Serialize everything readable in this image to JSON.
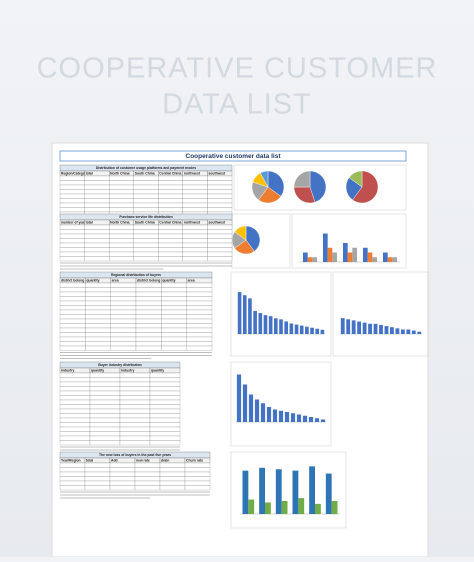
{
  "title_lines": [
    "COOPERATIVE CUSTOMER",
    "DATA LIST"
  ],
  "sheet_title": "Cooperative customer data list",
  "tables": [
    {
      "title": "Distribution of customer usage platforms and payment modes",
      "headers": [
        "Region/Category",
        "total",
        "North China",
        "South China",
        "Central China",
        "northwest",
        "southwest"
      ]
    },
    {
      "title": "Purchase service life distribution",
      "headers": [
        "number of years",
        "total",
        "North China",
        "South China",
        "Central China",
        "northwest",
        "southwest"
      ]
    },
    {
      "title": "Regional distribution of buyers",
      "headers": [
        "district belong to",
        "quantity",
        "area",
        "district belong to",
        "quantity",
        "area"
      ]
    },
    {
      "title": "Buyer industry distribution",
      "headers": [
        "industry",
        "quantity",
        "industry",
        "quantity"
      ]
    },
    {
      "title": "The new loss of buyers in the past five years",
      "headers": [
        "Year/Region",
        "total",
        "Add",
        "new rate",
        "drain",
        "Churn rate"
      ]
    }
  ],
  "chart_data": [
    {
      "type": "pie",
      "values": [
        35,
        25,
        20,
        12,
        8
      ],
      "colors": [
        "#4472c4",
        "#ed7d31",
        "#a5a5a5",
        "#ffc000",
        "#5b9bd5"
      ]
    },
    {
      "type": "pie",
      "values": [
        45,
        30,
        25
      ],
      "colors": [
        "#4472c4",
        "#c0504d",
        "#a5a5a5"
      ]
    },
    {
      "type": "pie",
      "values": [
        60,
        25,
        15
      ],
      "colors": [
        "#c0504d",
        "#4472c4",
        "#9bbb59"
      ]
    },
    {
      "type": "pie",
      "values": [
        40,
        25,
        20,
        15
      ],
      "colors": [
        "#4472c4",
        "#ed7d31",
        "#a5a5a5",
        "#ffc000"
      ]
    },
    {
      "type": "bar",
      "ylim": [
        0,
        8
      ],
      "series": [
        {
          "color": "#4472c4",
          "values": [
            2,
            6,
            4,
            3,
            2
          ]
        },
        {
          "color": "#ed7d31",
          "values": [
            1,
            3,
            2,
            2,
            1
          ]
        },
        {
          "color": "#a5a5a5",
          "values": [
            1,
            2,
            3,
            1,
            1
          ]
        }
      ]
    },
    {
      "type": "bar",
      "ylim": [
        0,
        42
      ],
      "series": [
        {
          "color": "#4472c4",
          "values": [
            40,
            37,
            34,
            22,
            20,
            18,
            17,
            15,
            14,
            12,
            10,
            9,
            8,
            7,
            6,
            5,
            4
          ]
        }
      ]
    },
    {
      "type": "bar",
      "ylim": [
        0,
        30
      ],
      "series": [
        {
          "color": "#4472c4",
          "values": [
            14,
            13,
            12,
            11,
            10,
            9,
            9,
            8,
            7,
            6,
            5,
            4,
            4,
            3,
            2
          ]
        }
      ]
    },
    {
      "type": "bar",
      "ylim": [
        0,
        40
      ],
      "series": [
        {
          "color": "#4472c4",
          "values": [
            38,
            30,
            22,
            18,
            15,
            12,
            10,
            9,
            8,
            7,
            6,
            5,
            4,
            3,
            2
          ]
        }
      ]
    },
    {
      "type": "bar",
      "ylim": [
        0,
        36
      ],
      "series": [
        {
          "color": "#2e75b6",
          "values": [
            30,
            32,
            31,
            30,
            33,
            28
          ]
        },
        {
          "color": "#70ad47",
          "values": [
            10,
            8,
            9,
            11,
            7,
            9
          ]
        }
      ]
    }
  ]
}
